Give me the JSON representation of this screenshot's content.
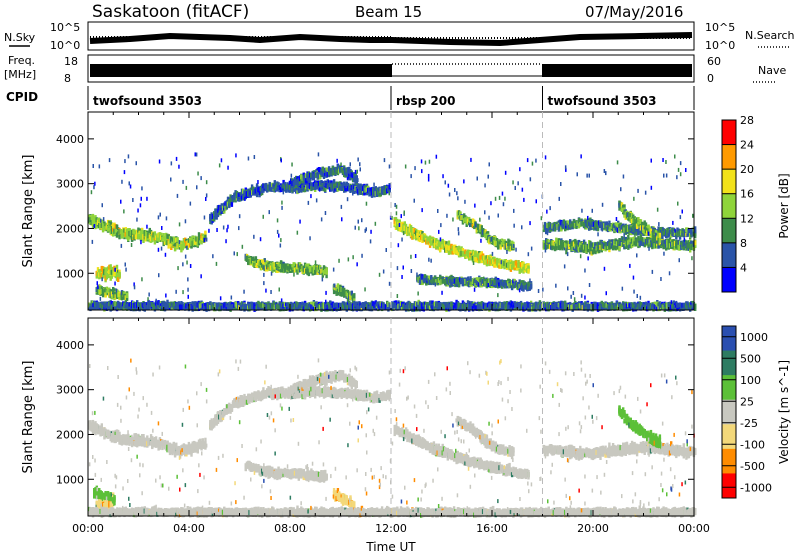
{
  "header": {
    "station": "Saskatoon (fitACF)",
    "beam": "Beam 15",
    "date": "07/May/2016"
  },
  "top_panels": {
    "nsky_label": "N.Sky",
    "nsky_ticks": [
      "10^5",
      "10^0"
    ],
    "nsearch_label": "N.Search",
    "freq_label": "Freq.",
    "freq_unit": "[MHz]",
    "freq_ticks": [
      "18",
      "8"
    ],
    "nave_label": "Nave",
    "nave_ticks": [
      "60",
      "0"
    ],
    "cpid_label": "CPID",
    "cpid_segments": [
      {
        "name": "twofsound 3503",
        "start_hour": 0,
        "end_hour": 12
      },
      {
        "name": "rbsp 200",
        "start_hour": 12,
        "end_hour": 18
      },
      {
        "name": "twofsound 3503",
        "start_hour": 18,
        "end_hour": 24
      }
    ]
  },
  "chart_data": [
    {
      "type": "heatmap",
      "name": "power",
      "ylabel": "Slant Range [km]",
      "xlabel": "",
      "xlim": [
        0,
        24
      ],
      "ylim": [
        180,
        4600
      ],
      "yticks": [
        "1000",
        "2000",
        "3000",
        "4000"
      ],
      "colorbar": {
        "label": "Power [dB]",
        "ticks": [
          "4",
          "8",
          "12",
          "16",
          "20",
          "24",
          "28"
        ],
        "colors": [
          "#0000ff",
          "#2a54a8",
          "#3d8c4a",
          "#8fd43a",
          "#f2e21a",
          "#ff9a00",
          "#ff0000"
        ],
        "range": [
          0,
          30
        ]
      },
      "bands": [
        {
          "hours": [
            0,
            0.6,
            1.2,
            2,
            3,
            3.6,
            4.2,
            4.6
          ],
          "range_km": [
            2200,
            2050,
            1900,
            1850,
            1750,
            1600,
            1700,
            1800
          ],
          "width_km": 150,
          "value": 14
        },
        {
          "hours": [
            4.8,
            5.8,
            7,
            8,
            9.2,
            10.4,
            11.4,
            11.9
          ],
          "range_km": [
            2200,
            2700,
            2900,
            2900,
            2950,
            2900,
            2800,
            2900
          ],
          "width_km": 130,
          "value": 6
        },
        {
          "hours": [
            8,
            9,
            10,
            10.6
          ],
          "range_km": [
            3000,
            3200,
            3300,
            3100
          ],
          "width_km": 130,
          "value": 6
        },
        {
          "hours": [
            6.2,
            7,
            8.2,
            9.4
          ],
          "range_km": [
            1300,
            1150,
            1100,
            1050
          ],
          "width_km": 130,
          "value": 12
        },
        {
          "hours": [
            0.3,
            0.7,
            1.2
          ],
          "range_km": [
            1000,
            1000,
            1000
          ],
          "width_km": 200,
          "value": 16
        },
        {
          "hours": [
            0.3,
            0.8,
            1.5
          ],
          "range_km": [
            620,
            550,
            480
          ],
          "width_km": 120,
          "value": 12
        },
        {
          "hours": [
            9.7,
            10.1,
            10.5
          ],
          "range_km": [
            650,
            550,
            420
          ],
          "width_km": 140,
          "value": 10
        },
        {
          "hours": [
            12.1,
            12.8,
            13.5,
            14.5,
            15.4,
            16.4,
            17.4
          ],
          "range_km": [
            2100,
            1900,
            1700,
            1500,
            1350,
            1200,
            1100
          ],
          "width_km": 140,
          "value": 16
        },
        {
          "hours": [
            13,
            14.5,
            16,
            17.5
          ],
          "range_km": [
            850,
            800,
            780,
            700
          ],
          "width_km": 110,
          "value": 8
        },
        {
          "hours": [
            14.6,
            15.2,
            15.8,
            16.2,
            16.8
          ],
          "range_km": [
            2300,
            2100,
            1800,
            1650,
            1600
          ],
          "width_km": 120,
          "value": 12
        },
        {
          "hours": [
            18,
            19,
            20,
            21,
            22,
            23,
            24
          ],
          "range_km": [
            1650,
            1600,
            1550,
            1650,
            1700,
            1650,
            1600
          ],
          "width_km": 150,
          "value": 10
        },
        {
          "hours": [
            18,
            19.5,
            21,
            22.4,
            24
          ],
          "range_km": [
            2000,
            2100,
            2000,
            1900,
            1900
          ],
          "width_km": 120,
          "value": 8
        },
        {
          "hours": [
            21,
            21.5,
            22,
            22.6
          ],
          "range_km": [
            2500,
            2200,
            2000,
            1800
          ],
          "width_km": 150,
          "value": 12
        },
        {
          "hours": [
            0,
            3,
            6,
            9,
            12,
            15,
            18,
            21,
            24
          ],
          "range_km": [
            260,
            260,
            250,
            250,
            250,
            250,
            250,
            250,
            250
          ],
          "width_km": 100,
          "value": 6
        }
      ]
    },
    {
      "type": "heatmap",
      "name": "velocity",
      "ylabel": "Slant Range [km]",
      "xlabel": "Time UT",
      "xlim": [
        0,
        24
      ],
      "ylim": [
        180,
        4600
      ],
      "xticks": [
        "00:00",
        "04:00",
        "08:00",
        "12:00",
        "16:00",
        "20:00",
        "00:00"
      ],
      "yticks": [
        "1000",
        "2000",
        "3000",
        "4000"
      ],
      "colorbar": {
        "label": "Velocity [m s^-1]",
        "ticks": [
          "1000",
          "500",
          "100",
          "25",
          "-25",
          "-100",
          "-500",
          "-1000"
        ],
        "colors": [
          "#2a4fb0",
          "#2e7c62",
          "#5cc038",
          "#c8c8c0",
          "#f3d87a",
          "#ff8c00",
          "#ff0000"
        ],
        "range": [
          -1000,
          1000
        ]
      },
      "bands": [
        {
          "hours": [
            0,
            0.6,
            1.2,
            2,
            3,
            3.6,
            4.2,
            4.6
          ],
          "range_km": [
            2200,
            2050,
            1900,
            1850,
            1750,
            1600,
            1700,
            1800
          ],
          "width_km": 150,
          "value": 0
        },
        {
          "hours": [
            4.8,
            5.8,
            7,
            8,
            9.2,
            10.4,
            11.4,
            11.9
          ],
          "range_km": [
            2200,
            2700,
            2900,
            2900,
            2950,
            2900,
            2800,
            2900
          ],
          "width_km": 130,
          "value": 0
        },
        {
          "hours": [
            8,
            9,
            10,
            10.6
          ],
          "range_km": [
            3000,
            3200,
            3300,
            3100
          ],
          "width_km": 130,
          "value": 0
        },
        {
          "hours": [
            6.2,
            7,
            8.2,
            9.4
          ],
          "range_km": [
            1300,
            1150,
            1100,
            1050
          ],
          "width_km": 130,
          "value": 0
        },
        {
          "hours": [
            0.2,
            0.6,
            1
          ],
          "range_km": [
            700,
            600,
            550
          ],
          "width_km": 150,
          "value": 300
        },
        {
          "hours": [
            0.3,
            0.6,
            0.9
          ],
          "range_km": [
            420,
            400,
            380
          ],
          "width_km": 120,
          "value": -400
        },
        {
          "hours": [
            9.7,
            10.1,
            10.5
          ],
          "range_km": [
            650,
            550,
            420
          ],
          "width_km": 140,
          "value": -400
        },
        {
          "hours": [
            12.1,
            12.8,
            13.5,
            14.5,
            15.4,
            16.4,
            17.4
          ],
          "range_km": [
            2100,
            1900,
            1700,
            1500,
            1350,
            1200,
            1100
          ],
          "width_km": 140,
          "value": 0
        },
        {
          "hours": [
            14.6,
            15.2,
            15.8,
            16.2,
            16.8
          ],
          "range_km": [
            2300,
            2100,
            1800,
            1650,
            1600
          ],
          "width_km": 120,
          "value": 0
        },
        {
          "hours": [
            18,
            19,
            20,
            21,
            22,
            23,
            24
          ],
          "range_km": [
            1650,
            1600,
            1550,
            1650,
            1700,
            1650,
            1600
          ],
          "width_km": 150,
          "value": 0
        },
        {
          "hours": [
            21,
            21.5,
            22,
            22.6
          ],
          "range_km": [
            2500,
            2200,
            2000,
            1800
          ],
          "width_km": 150,
          "value": 300
        },
        {
          "hours": [
            0,
            3,
            6,
            9,
            12,
            15,
            18,
            21,
            24
          ],
          "range_km": [
            260,
            260,
            250,
            250,
            250,
            250,
            250,
            250,
            250
          ],
          "width_km": 100,
          "value": 50
        }
      ]
    }
  ]
}
